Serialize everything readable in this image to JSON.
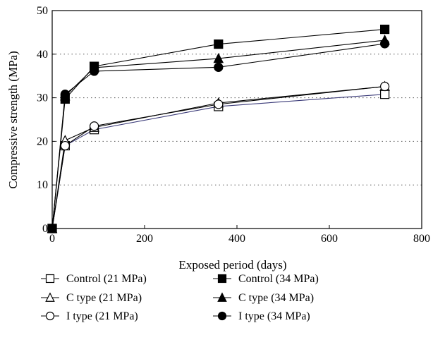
{
  "chart_data": {
    "type": "line",
    "xlabel": "Exposed period (days)",
    "ylabel": "Compressive strength (MPa)",
    "xlim": [
      0,
      800
    ],
    "ylim": [
      0,
      50
    ],
    "xticks": [
      0,
      200,
      400,
      600,
      800
    ],
    "yticks": [
      0,
      10,
      20,
      30,
      40,
      50
    ],
    "grid": "horizontal dotted",
    "legend_position": "bottom",
    "x": [
      0,
      28,
      91,
      360,
      720
    ],
    "series": [
      {
        "name": "Control (21 MPa)",
        "marker": "square",
        "filled": false,
        "color": "#3a3a78",
        "values": [
          0,
          19.0,
          22.7,
          28.0,
          30.8
        ]
      },
      {
        "name": "C type (21 MPa)",
        "marker": "triangle",
        "filled": false,
        "color": "#000000",
        "values": [
          0,
          20.2,
          23.2,
          28.8,
          32.6
        ]
      },
      {
        "name": "I type (21 MPa)",
        "marker": "circle",
        "filled": false,
        "color": "#000000",
        "values": [
          0,
          19.0,
          23.5,
          28.5,
          32.6
        ]
      },
      {
        "name": "Control (34 MPa)",
        "marker": "square",
        "filled": true,
        "color": "#000000",
        "values": [
          0,
          29.7,
          37.2,
          42.3,
          45.7
        ]
      },
      {
        "name": "C type (34 MPa)",
        "marker": "triangle",
        "filled": true,
        "color": "#000000",
        "values": [
          0,
          30.4,
          36.9,
          39.0,
          43.2
        ]
      },
      {
        "name": "I type (34 MPa)",
        "marker": "circle",
        "filled": true,
        "color": "#000000",
        "values": [
          0,
          30.8,
          36.1,
          37.0,
          42.4
        ]
      }
    ]
  }
}
